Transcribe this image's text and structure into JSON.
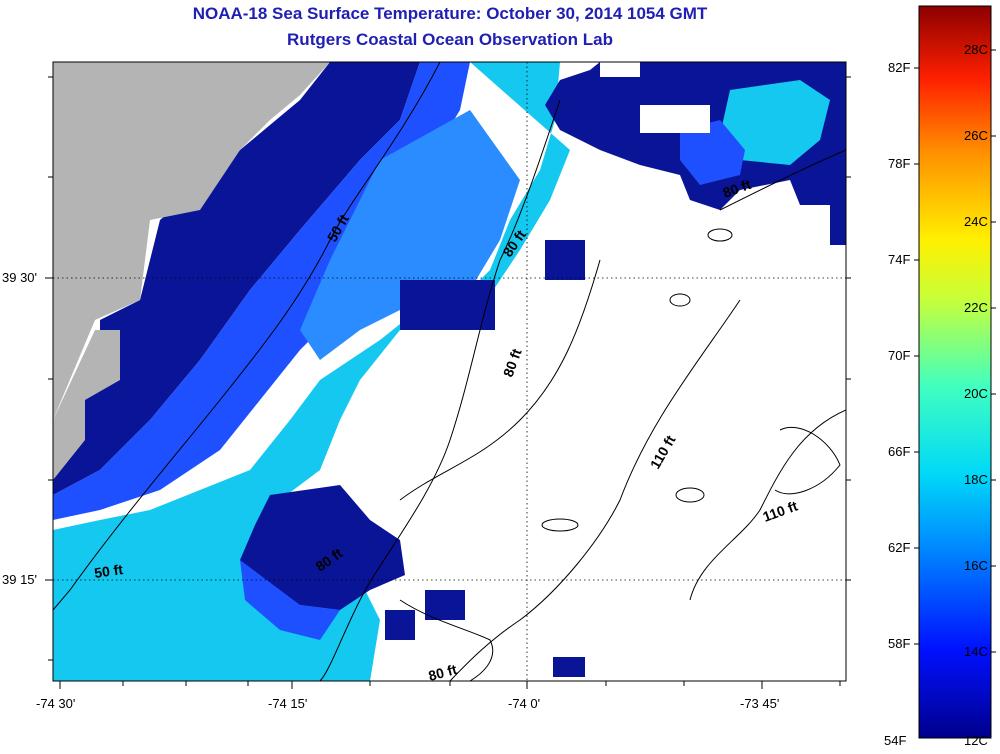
{
  "header": {
    "title": "NOAA-18 Sea Surface Temperature:  October 30, 2014 1054 GMT",
    "subtitle": "Rutgers Coastal Ocean Observation Lab"
  },
  "axes": {
    "x_ticks": [
      "-74 30'",
      "-74 15'",
      "-74 0'",
      "-73 45'"
    ],
    "y_ticks": [
      "39 30'",
      "39 15'"
    ]
  },
  "contours": [
    "50 ft",
    "50 ft",
    "80 ft",
    "80 ft",
    "80 ft",
    "80 ft",
    "80 ft",
    "110 ft",
    "110 ft"
  ],
  "colorbar": {
    "fahrenheit": [
      "82F",
      "78F",
      "74F",
      "70F",
      "66F",
      "62F",
      "58F",
      "54F"
    ],
    "celsius": [
      "28C",
      "26C",
      "24C",
      "22C",
      "20C",
      "18C",
      "16C",
      "14C",
      "12C"
    ]
  },
  "colors": {
    "land": "#b4b4b4",
    "cloud": "#ffffff",
    "deep_blue": "#0a1496",
    "blue": "#1e50ff",
    "cyan": "#14c8f0",
    "title": "#1f1fb4"
  }
}
